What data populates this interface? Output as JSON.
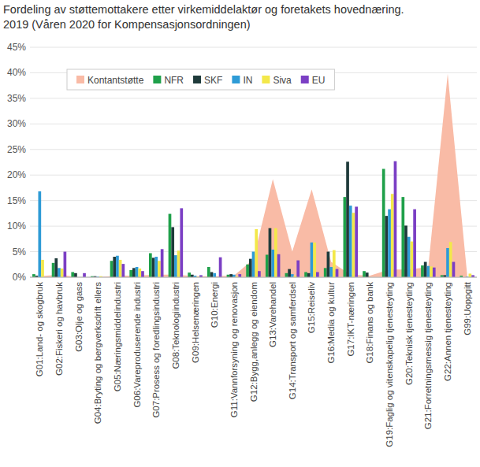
{
  "chart_data": {
    "type": "bar",
    "title": "Fordeling av støttemottakere etter virkemiddelaktør og foretakets hovednæring.",
    "subtitle": "2019 (Våren 2020 for Kompensasjonsordningen)",
    "categories": [
      "G01:Land- og skogbruk",
      "G02:Fiskeri og havbruk",
      "G03:Olje og gass",
      "G04:Bryting og bergverksdrift ellers",
      "G05:Næringsmiddelindustri",
      "G06:Vareproduserende industri",
      "G07:Prosess og foredlingsindustri",
      "G08:Teknologiindustri",
      "G09:Helsenæringen",
      "G10:Energi",
      "G11:Vannforsyning og renovasjon",
      "G12:Bygg,anlegg og eiendom",
      "G13:Varehandel",
      "G14:Transport og samferdsel",
      "G15:Reiseliv",
      "G16:Media og kultur",
      "G17:IKT-næringen",
      "G18:Finans og bank",
      "G19:Faglig og vitenskapelig tjenesteyting",
      "G20:Teknisk tjenesteyting",
      "G21:Forretningsmessig tjenesteyting",
      "G22:Annen tjenesteyting",
      "G99:Uoppgitt"
    ],
    "series": [
      {
        "name": "Kontantstøtte",
        "type": "area",
        "color": "#f9bba6",
        "values": [
          0.2,
          0.5,
          0,
          0,
          0.3,
          0.3,
          0.5,
          0.5,
          0.2,
          0.2,
          0.3,
          3.5,
          19.2,
          5,
          17.2,
          3,
          0.5,
          0.3,
          1.5,
          1.5,
          2,
          39.8,
          0.5
        ]
      },
      {
        "name": "NFR",
        "type": "bar",
        "color": "#1fa04a",
        "values": [
          0.6,
          2.8,
          1.0,
          0.2,
          3.2,
          1.4,
          4.7,
          12.4,
          0.9,
          2.0,
          0.5,
          2.5,
          4.4,
          0.8,
          1.0,
          1.8,
          15.7,
          1.2,
          21.2,
          15.7,
          2.3,
          0.4,
          0.3
        ]
      },
      {
        "name": "SKF",
        "type": "bar",
        "color": "#1f3b3b",
        "values": [
          0.3,
          3.7,
          0.8,
          0.2,
          4.0,
          1.8,
          3.8,
          9.8,
          0.5,
          1.0,
          0.6,
          3.6,
          9.6,
          1.6,
          0.8,
          5.0,
          22.6,
          0.9,
          12.0,
          10.1,
          3.0,
          0.4,
          0
        ]
      },
      {
        "name": "IN",
        "type": "bar",
        "color": "#2e9bd6",
        "values": [
          16.8,
          1.8,
          0,
          0.1,
          4.2,
          2.0,
          4.0,
          4.3,
          0.3,
          0.8,
          0.5,
          5.0,
          5.4,
          0.6,
          6.8,
          2.0,
          14.0,
          0,
          13.3,
          7.9,
          2.2,
          5.7,
          0.1
        ]
      },
      {
        "name": "Siva",
        "type": "bar",
        "color": "#f3e84a",
        "values": [
          3.4,
          1.7,
          0,
          0.2,
          3.4,
          1.7,
          3.2,
          5.2,
          0.1,
          0,
          0.2,
          9.4,
          9.6,
          0.3,
          6.8,
          5.3,
          12.6,
          0,
          16.3,
          7.0,
          2.1,
          6.9,
          0.7
        ]
      },
      {
        "name": "EU",
        "type": "bar",
        "color": "#7b3fc4",
        "values": [
          0,
          5.0,
          0.8,
          0,
          2.6,
          1.2,
          5.5,
          13.5,
          0.4,
          3.9,
          0.6,
          1.2,
          4.5,
          3.3,
          1.0,
          1.6,
          13.8,
          0,
          22.7,
          13.3,
          1.9,
          3.0,
          0.4
        ]
      }
    ],
    "ylim": [
      0,
      45
    ],
    "yticks": [
      {
        "value": 0,
        "label": "0%"
      },
      {
        "value": 5,
        "label": "5%"
      },
      {
        "value": 10,
        "label": "10%"
      },
      {
        "value": 15,
        "label": "15%"
      },
      {
        "value": 20,
        "label": "20%"
      },
      {
        "value": 25,
        "label": "25%"
      },
      {
        "value": 30,
        "label": "30%"
      },
      {
        "value": 35,
        "label": "35%"
      },
      {
        "value": 40,
        "label": "40%"
      },
      {
        "value": 45,
        "label": "45%"
      }
    ],
    "grid": true,
    "legend": "top-left"
  }
}
